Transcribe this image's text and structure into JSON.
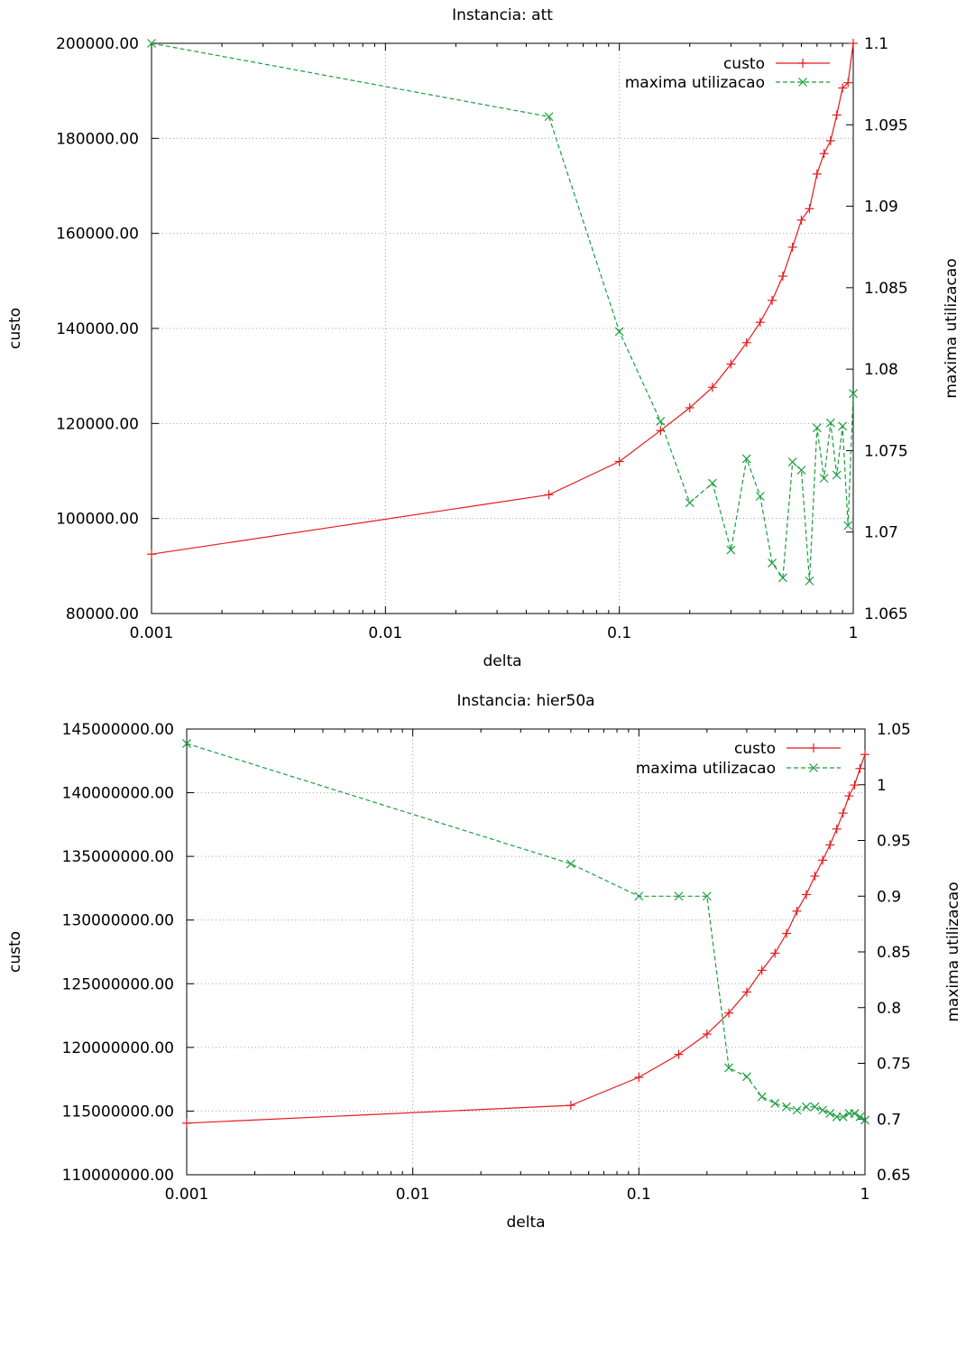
{
  "chart_data": [
    {
      "type": "line",
      "title": "Instancia: att",
      "xlabel": "delta",
      "ylabel": "custo",
      "y2label": "maxima utilizacao",
      "xscale": "log",
      "xlim": [
        0.001,
        1
      ],
      "ylim": [
        80000,
        200000
      ],
      "y2lim": [
        1.065,
        1.1
      ],
      "xticks": [
        0.001,
        0.01,
        0.1,
        1
      ],
      "xtick_labels": [
        "0.001",
        "0.01",
        "0.1",
        "1"
      ],
      "yticks": [
        80000,
        100000,
        120000,
        140000,
        160000,
        180000,
        200000
      ],
      "ytick_labels": [
        "80000.00",
        "100000.00",
        "120000.00",
        "140000.00",
        "160000.00",
        "180000.00",
        "200000.00"
      ],
      "y2ticks": [
        1.065,
        1.07,
        1.075,
        1.08,
        1.085,
        1.09,
        1.095,
        1.1
      ],
      "y2tick_labels": [
        "1.065",
        "1.07",
        "1.075",
        "1.08",
        "1.085",
        "1.09",
        "1.095",
        "1.1"
      ],
      "grid": true,
      "legend_position": "top-right",
      "series": [
        {
          "name": "custo",
          "axis": "left",
          "color": "#e41a1c",
          "marker": "plus",
          "dash": "solid",
          "x": [
            0.001,
            0.05,
            0.1,
            0.15,
            0.2,
            0.25,
            0.3,
            0.35,
            0.4,
            0.45,
            0.5,
            0.55,
            0.6,
            0.65,
            0.7,
            0.75,
            0.8,
            0.85,
            0.9,
            0.95,
            1.0
          ],
          "y": [
            92500,
            105000,
            112000,
            118500,
            123300,
            127600,
            132500,
            137000,
            141300,
            145900,
            151000,
            157100,
            162800,
            165200,
            172500,
            176800,
            179500,
            184900,
            190600,
            191700,
            200000
          ]
        },
        {
          "name": "maxima utilizacao",
          "axis": "right",
          "color": "#1a9e3f",
          "marker": "cross",
          "dash": "dashed",
          "x": [
            0.001,
            0.05,
            0.1,
            0.15,
            0.2,
            0.25,
            0.3,
            0.35,
            0.4,
            0.45,
            0.5,
            0.55,
            0.6,
            0.65,
            0.7,
            0.75,
            0.8,
            0.85,
            0.9,
            0.95,
            1.0
          ],
          "y": [
            1.1,
            1.0955,
            1.0823,
            1.0768,
            1.0718,
            1.073,
            1.0689,
            1.0745,
            1.0722,
            1.0681,
            1.0672,
            1.0743,
            1.0738,
            1.067,
            1.0764,
            1.0733,
            1.0767,
            1.0735,
            1.0765,
            1.0704,
            1.0785
          ]
        }
      ]
    },
    {
      "type": "line",
      "title": "Instancia: hier50a",
      "xlabel": "delta",
      "ylabel": "custo",
      "y2label": "maxima utilizacao",
      "xscale": "log",
      "xlim": [
        0.001,
        1
      ],
      "ylim": [
        110000000,
        145000000
      ],
      "y2lim": [
        0.65,
        1.05
      ],
      "xticks": [
        0.001,
        0.01,
        0.1,
        1
      ],
      "xtick_labels": [
        "0.001",
        "0.01",
        "0.1",
        "1"
      ],
      "yticks": [
        110000000,
        115000000,
        120000000,
        125000000,
        130000000,
        135000000,
        140000000,
        145000000
      ],
      "ytick_labels": [
        "110000000.00",
        "115000000.00",
        "120000000.00",
        "125000000.00",
        "130000000.00",
        "135000000.00",
        "140000000.00",
        "145000000.00"
      ],
      "y2ticks": [
        0.65,
        0.7,
        0.75,
        0.8,
        0.85,
        0.9,
        0.95,
        1.0,
        1.05
      ],
      "y2tick_labels": [
        "0.65",
        "0.7",
        "0.75",
        "0.8",
        "0.85",
        "0.9",
        "0.95",
        "1",
        "1.05"
      ],
      "grid": true,
      "legend_position": "top-right",
      "series": [
        {
          "name": "custo",
          "axis": "left",
          "color": "#e41a1c",
          "marker": "plus",
          "dash": "solid",
          "x": [
            0.001,
            0.05,
            0.1,
            0.15,
            0.2,
            0.25,
            0.3,
            0.35,
            0.4,
            0.45,
            0.5,
            0.55,
            0.6,
            0.65,
            0.7,
            0.75,
            0.8,
            0.85,
            0.9,
            0.95,
            1.0
          ],
          "y": [
            114050000,
            115450000,
            117650000,
            119450000,
            121050000,
            122700000,
            124350000,
            126050000,
            127400000,
            128950000,
            130700000,
            132000000,
            133450000,
            134700000,
            135900000,
            137150000,
            138400000,
            139750000,
            140600000,
            141900000,
            143000000
          ]
        },
        {
          "name": "maxima utilizacao",
          "axis": "right",
          "color": "#1a9e3f",
          "marker": "cross",
          "dash": "dashed",
          "x": [
            0.001,
            0.05,
            0.1,
            0.15,
            0.2,
            0.25,
            0.3,
            0.35,
            0.4,
            0.45,
            0.5,
            0.55,
            0.6,
            0.65,
            0.7,
            0.75,
            0.8,
            0.85,
            0.9,
            0.95,
            1.0
          ],
          "y": [
            1.037,
            0.929,
            0.9,
            0.9,
            0.9,
            0.746,
            0.738,
            0.72,
            0.714,
            0.711,
            0.708,
            0.711,
            0.711,
            0.708,
            0.705,
            0.702,
            0.702,
            0.705,
            0.705,
            0.702,
            0.699
          ]
        }
      ]
    }
  ]
}
